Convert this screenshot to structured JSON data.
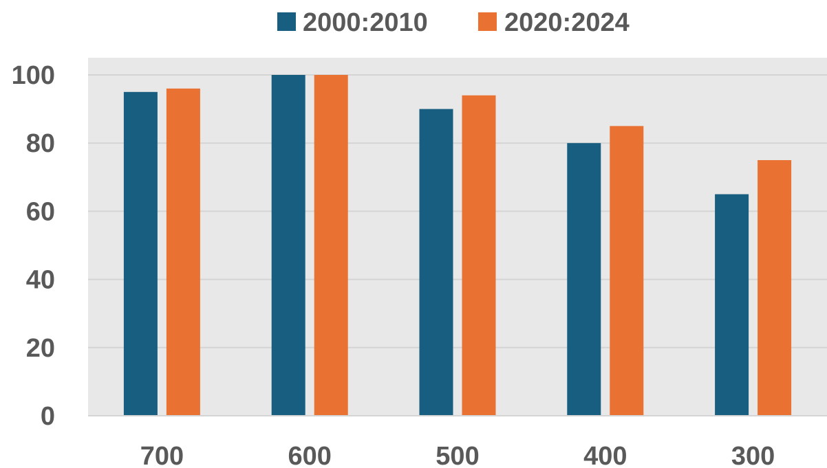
{
  "chart_data": {
    "type": "bar",
    "categories": [
      "700",
      "600",
      "500",
      "400",
      "300"
    ],
    "series": [
      {
        "name": "2000:2010",
        "values": [
          95,
          100,
          90,
          80,
          65
        ]
      },
      {
        "name": "2020:2024",
        "values": [
          96,
          100,
          94,
          85,
          75
        ]
      }
    ],
    "ylim": [
      0,
      100
    ],
    "yticks": [
      0,
      20,
      40,
      60,
      80,
      100
    ],
    "grid": true,
    "legend": "top-center"
  },
  "colors": {
    "series": [
      "#175e80",
      "#e97132"
    ],
    "plot_background": "#e8e8e8",
    "gridline": "#d4d4d4",
    "axis_text": "#595959"
  }
}
